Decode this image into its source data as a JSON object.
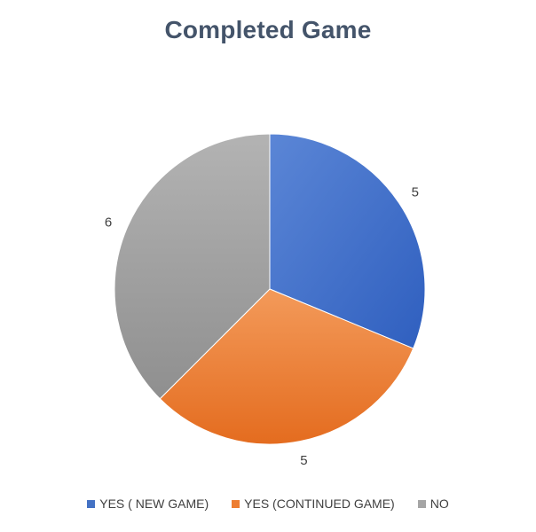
{
  "chart_data": {
    "type": "pie",
    "title": "Completed Game",
    "categories": [
      "YES ( NEW GAME)",
      "YES (CONTINUED GAME)",
      "NO"
    ],
    "values": [
      5,
      5,
      6
    ],
    "data_labels": [
      "5",
      "5",
      "6"
    ],
    "colors": [
      "#4472c4",
      "#ed7d31",
      "#a5a5a5"
    ],
    "legend_placement": "bottom",
    "start_angle_deg": 0,
    "direction": "clockwise"
  }
}
